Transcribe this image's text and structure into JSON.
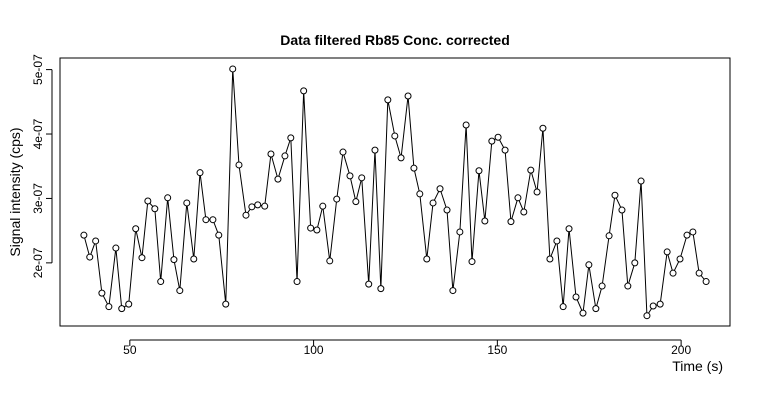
{
  "chart_data": {
    "type": "line",
    "title": "Data filtered Rb85 Conc. corrected",
    "x_label": "Time (s)",
    "y_label": "Signal intensity (cps)",
    "xlim": [
      31,
      213.3
    ],
    "ylim": [
      1.02e-07,
      5.18e-07
    ],
    "xticks": [
      50,
      100,
      150,
      200
    ],
    "yticks": [
      {
        "value": 2e-07,
        "label": "2e-07"
      },
      {
        "value": 3e-07,
        "label": "3e-07"
      },
      {
        "value": 4e-07,
        "label": "4e-07"
      },
      {
        "value": 5e-07,
        "label": "5e-07"
      }
    ],
    "series": [
      {
        "color": "#000000",
        "x": [
          37.5,
          39.1,
          40.7,
          42.4,
          44.3,
          46.2,
          47.8,
          49.7,
          51.6,
          53.3,
          54.9,
          56.8,
          58.4,
          60.3,
          62.0,
          63.6,
          65.5,
          67.4,
          69.1,
          70.7,
          72.6,
          74.2,
          76.1,
          78.0,
          79.7,
          81.6,
          83.2,
          84.8,
          86.7,
          88.4,
          90.3,
          92.2,
          93.8,
          95.5,
          97.3,
          99.2,
          100.9,
          102.5,
          104.4,
          106.3,
          108.0,
          109.9,
          111.5,
          113.1,
          115.0,
          116.7,
          118.3,
          120.2,
          122.1,
          123.8,
          125.7,
          127.3,
          128.9,
          130.8,
          132.5,
          134.4,
          136.3,
          137.9,
          139.8,
          141.5,
          143.1,
          145.0,
          146.6,
          148.5,
          150.2,
          152.1,
          153.7,
          155.6,
          157.2,
          159.1,
          160.8,
          162.4,
          164.3,
          166.2,
          167.9,
          169.5,
          171.4,
          173.3,
          174.9,
          176.8,
          178.5,
          180.4,
          182.0,
          183.9,
          185.5,
          187.4,
          189.1,
          190.7,
          192.4,
          194.3,
          196.2,
          197.8,
          199.7,
          201.6,
          203.2,
          204.9,
          206.8
        ],
        "values": [
          2.43e-07,
          2.09e-07,
          2.34e-07,
          1.53e-07,
          1.32e-07,
          2.23e-07,
          1.29e-07,
          1.36e-07,
          2.53e-07,
          2.08e-07,
          2.96e-07,
          2.84e-07,
          1.71e-07,
          3.01e-07,
          2.05e-07,
          1.57e-07,
          2.93e-07,
          2.06e-07,
          3.4e-07,
          2.67e-07,
          2.67e-07,
          2.43e-07,
          1.36e-07,
          5.01e-07,
          3.52e-07,
          2.74e-07,
          2.87e-07,
          2.9e-07,
          2.88e-07,
          3.69e-07,
          3.3e-07,
          3.66e-07,
          3.94e-07,
          1.71e-07,
          4.67e-07,
          2.54e-07,
          2.51e-07,
          2.88e-07,
          2.03e-07,
          2.99e-07,
          3.72e-07,
          3.35e-07,
          2.95e-07,
          3.32e-07,
          1.67e-07,
          3.75e-07,
          1.6e-07,
          4.53e-07,
          3.97e-07,
          3.63e-07,
          4.59e-07,
          3.47e-07,
          3.07e-07,
          2.06e-07,
          2.93e-07,
          3.15e-07,
          2.82e-07,
          1.57e-07,
          2.48e-07,
          4.14e-07,
          2.02e-07,
          3.43e-07,
          2.65e-07,
          3.89e-07,
          3.95e-07,
          3.75e-07,
          2.64e-07,
          3.01e-07,
          2.79e-07,
          3.44e-07,
          3.1e-07,
          4.09e-07,
          2.06e-07,
          2.34e-07,
          1.32e-07,
          2.53e-07,
          1.47e-07,
          1.22e-07,
          1.97e-07,
          1.29e-07,
          1.64e-07,
          2.42e-07,
          3.05e-07,
          2.82e-07,
          1.64e-07,
          2e-07,
          3.27e-07,
          1.18e-07,
          1.33e-07,
          1.36e-07,
          2.17e-07,
          1.84e-07,
          2.06e-07,
          2.43e-07,
          2.48e-07,
          1.84e-07,
          1.71e-07
        ]
      }
    ]
  }
}
